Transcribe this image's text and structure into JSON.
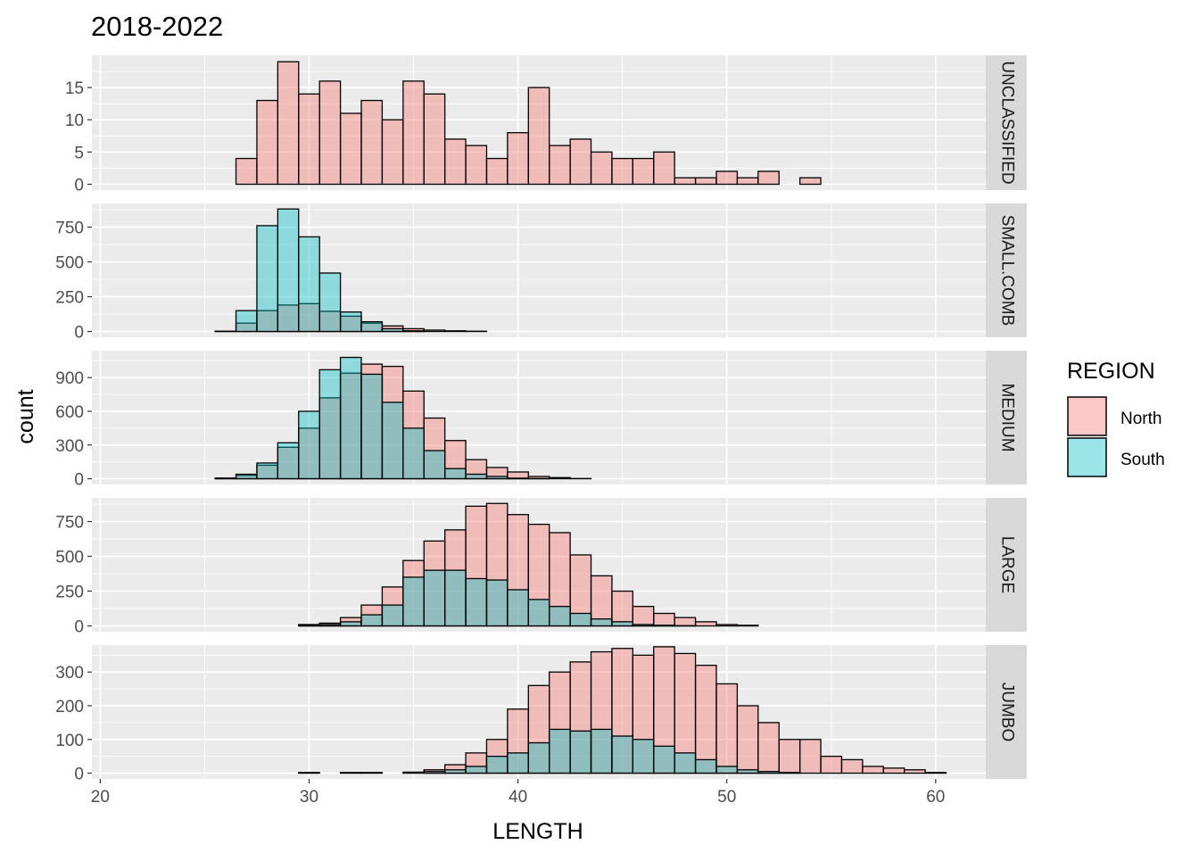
{
  "chart_data": {
    "type": "bar",
    "subtype": "faceted-overlapping-histogram",
    "title": "2018-2022",
    "xlabel": "LENGTH",
    "ylabel": "count",
    "xlim": [
      21.5,
      60.5
    ],
    "x_ticks": [
      20,
      30,
      40,
      50,
      60
    ],
    "bin_width": 1,
    "bin_centers": [
      22,
      23,
      24,
      25,
      26,
      27,
      28,
      29,
      30,
      31,
      32,
      33,
      34,
      35,
      36,
      37,
      38,
      39,
      40,
      41,
      42,
      43,
      44,
      45,
      46,
      47,
      48,
      49,
      50,
      51,
      52,
      53,
      54,
      55,
      56,
      57,
      58,
      59,
      60
    ],
    "legend": {
      "title": "REGION",
      "position": "right",
      "entries": [
        {
          "name": "North",
          "color": "#F8766D"
        },
        {
          "name": "South",
          "color": "#00BFC4"
        }
      ]
    },
    "grid": true,
    "facets": [
      {
        "label": "UNCLASSIFIED",
        "ylim": [
          0,
          20
        ],
        "y_ticks": [
          0,
          5,
          10,
          15
        ],
        "series": [
          {
            "name": "North",
            "values": [
              0,
              0,
              0,
              0,
              0,
              4,
              13,
              19,
              14,
              16,
              11,
              13,
              10,
              16,
              14,
              7,
              6,
              4,
              8,
              15,
              6,
              7,
              5,
              4,
              4,
              5,
              1,
              1,
              2,
              1,
              2,
              0,
              1,
              0,
              0,
              0,
              0,
              0,
              0
            ]
          },
          {
            "name": "South",
            "values": [
              0,
              0,
              0,
              0,
              0,
              0,
              0,
              0,
              0,
              0,
              0,
              0,
              0,
              0,
              0,
              0,
              0,
              0,
              0,
              0,
              0,
              0,
              0,
              0,
              0,
              0,
              0,
              0,
              0,
              0,
              0,
              0,
              0,
              0,
              0,
              0,
              0,
              0,
              0
            ]
          }
        ]
      },
      {
        "label": "SMALL.COMB",
        "ylim": [
          0,
          920
        ],
        "y_ticks": [
          0,
          250,
          500,
          750
        ],
        "series": [
          {
            "name": "North",
            "values": [
              0,
              0,
              0,
              0,
              2,
              60,
              150,
              190,
              200,
              145,
              110,
              60,
              40,
              20,
              10,
              5,
              2,
              0,
              0,
              0,
              0,
              0,
              0,
              0,
              0,
              0,
              0,
              0,
              0,
              0,
              0,
              0,
              0,
              0,
              0,
              0,
              0,
              0,
              0
            ]
          },
          {
            "name": "South",
            "values": [
              0,
              0,
              0,
              0,
              2,
              150,
              760,
              880,
              680,
              420,
              140,
              70,
              20,
              5,
              0,
              0,
              0,
              0,
              0,
              0,
              0,
              0,
              0,
              0,
              0,
              0,
              0,
              0,
              0,
              0,
              0,
              0,
              0,
              0,
              0,
              0,
              0,
              0,
              0
            ]
          }
        ]
      },
      {
        "label": "MEDIUM",
        "ylim": [
          0,
          1140
        ],
        "y_ticks": [
          0,
          300,
          600,
          900
        ],
        "series": [
          {
            "name": "North",
            "values": [
              0,
              0,
              0,
              0,
              5,
              30,
              120,
              280,
              450,
              720,
              940,
              1020,
              1000,
              780,
              540,
              340,
              170,
              100,
              60,
              20,
              10,
              2,
              0,
              0,
              0,
              0,
              0,
              0,
              0,
              0,
              0,
              0,
              0,
              0,
              0,
              0,
              0,
              0,
              0
            ]
          },
          {
            "name": "South",
            "values": [
              0,
              0,
              0,
              0,
              5,
              40,
              140,
              320,
              600,
              970,
              1080,
              930,
              680,
              450,
              250,
              90,
              40,
              20,
              5,
              2,
              0,
              0,
              0,
              0,
              0,
              0,
              0,
              0,
              0,
              0,
              0,
              0,
              0,
              0,
              0,
              0,
              0,
              0,
              0
            ]
          }
        ]
      },
      {
        "label": "LARGE",
        "ylim": [
          0,
          920
        ],
        "y_ticks": [
          0,
          250,
          500,
          750
        ],
        "series": [
          {
            "name": "North",
            "values": [
              0,
              0,
              0,
              0,
              0,
              0,
              0,
              0,
              10,
              20,
              60,
              150,
              280,
              470,
              610,
              690,
              860,
              880,
              800,
              730,
              670,
              510,
              360,
              250,
              140,
              90,
              60,
              30,
              10,
              5,
              0,
              0,
              0,
              0,
              0,
              0,
              0,
              0,
              0
            ]
          },
          {
            "name": "South",
            "values": [
              0,
              0,
              0,
              0,
              0,
              0,
              0,
              0,
              5,
              10,
              30,
              80,
              150,
              350,
              400,
              400,
              340,
              330,
              260,
              190,
              140,
              90,
              50,
              30,
              10,
              5,
              2,
              0,
              0,
              0,
              0,
              0,
              0,
              0,
              0,
              0,
              0,
              0,
              0
            ]
          }
        ]
      },
      {
        "label": "JUMBO",
        "ylim": [
          0,
          380
        ],
        "y_ticks": [
          0,
          100,
          200,
          300
        ],
        "series": [
          {
            "name": "North",
            "values": [
              0,
              0,
              0,
              0,
              0,
              0,
              0,
              0,
              2,
              0,
              2,
              2,
              0,
              3,
              10,
              25,
              60,
              100,
              190,
              260,
              300,
              330,
              360,
              370,
              350,
              375,
              355,
              320,
              265,
              200,
              150,
              100,
              100,
              50,
              40,
              20,
              15,
              10,
              2
            ]
          },
          {
            "name": "South",
            "values": [
              0,
              0,
              0,
              0,
              0,
              0,
              0,
              0,
              0,
              0,
              0,
              0,
              0,
              0,
              5,
              10,
              20,
              50,
              60,
              90,
              130,
              125,
              130,
              110,
              100,
              80,
              60,
              40,
              20,
              10,
              5,
              2,
              0,
              0,
              0,
              0,
              0,
              0,
              0
            ]
          }
        ]
      }
    ]
  }
}
